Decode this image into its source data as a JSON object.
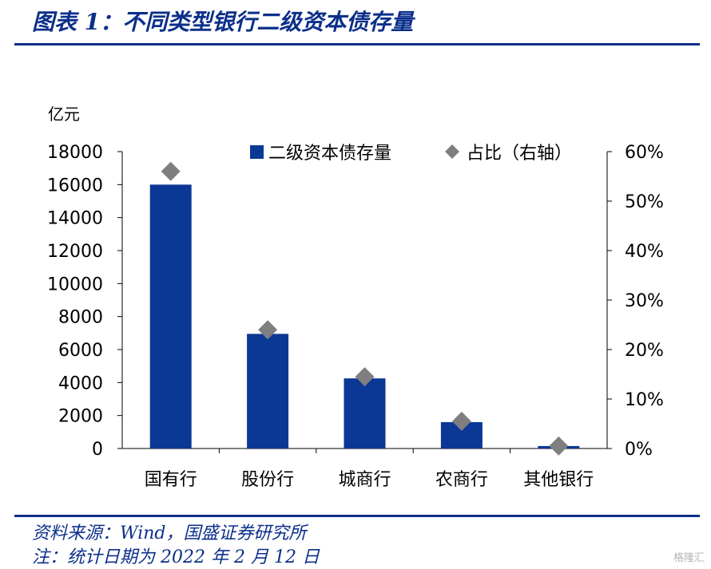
{
  "figure_title": "图表 1：不同类型银行二级资本债存量",
  "footer": {
    "source": "资料来源：Wind，国盛证券研究所",
    "note": "注：统计日期为 2022 年 2 月 12 日"
  },
  "watermark": "格隆汇",
  "colors": {
    "bar": "#0b3895",
    "marker": "#7f7f7f",
    "accent": "#0b2f8a"
  },
  "chart_data": {
    "type": "bar",
    "categories": [
      "国有行",
      "股份行",
      "城商行",
      "农商行",
      "其他银行"
    ],
    "y_unit_label": "亿元",
    "series": [
      {
        "name": "二级资本债存量",
        "type": "bar",
        "axis": "left",
        "values": [
          16000,
          6950,
          4250,
          1600,
          150
        ]
      },
      {
        "name": "占比（右轴）",
        "type": "scatter",
        "axis": "right",
        "values": [
          0.56,
          0.24,
          0.145,
          0.055,
          0.005
        ]
      }
    ],
    "ylim": [
      0,
      18000
    ],
    "y_ticks": [
      "0",
      "2000",
      "4000",
      "6000",
      "8000",
      "10000",
      "12000",
      "14000",
      "16000",
      "18000"
    ],
    "y2lim": [
      0,
      0.6
    ],
    "y2_ticks": [
      "0%",
      "10%",
      "20%",
      "30%",
      "40%",
      "50%",
      "60%"
    ],
    "legend_position": "top-right",
    "grid": false
  }
}
